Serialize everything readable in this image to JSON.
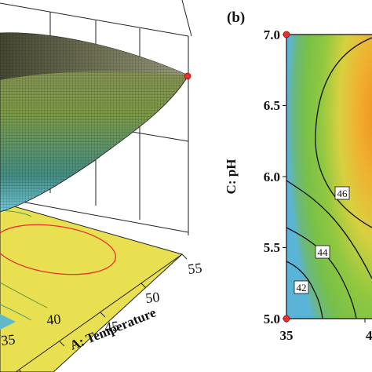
{
  "chart_data": [
    {
      "type": "surface",
      "panel_label": "",
      "xlabel": "A: Temperature",
      "x_ticks": [
        "35",
        "40",
        "45",
        "50",
        "55"
      ],
      "xlim": [
        35,
        55
      ],
      "surface_color_low": "#5ab4c8",
      "surface_color_mid": "#c8d23c",
      "surface_color_high": "#f0a020",
      "floor_color": "#e8e050",
      "design_point_color": "#e8302a"
    },
    {
      "type": "contour",
      "panel_label": "(b)",
      "ylabel": "C: pH",
      "y_ticks": [
        "5.0",
        "5.5",
        "6.0",
        "6.5",
        "7.0"
      ],
      "ylim": [
        5.0,
        7.0
      ],
      "x_ticks": [
        "35",
        "4"
      ],
      "xlim": [
        35,
        55
      ],
      "contour_labels": [
        "46",
        "44",
        "42"
      ],
      "contour_levels": [
        46,
        44,
        42
      ],
      "color_low": "#5ab4d8",
      "color_mid": "#8cc840",
      "color_high": "#f0a020",
      "design_point_color": "#e8302a"
    }
  ]
}
